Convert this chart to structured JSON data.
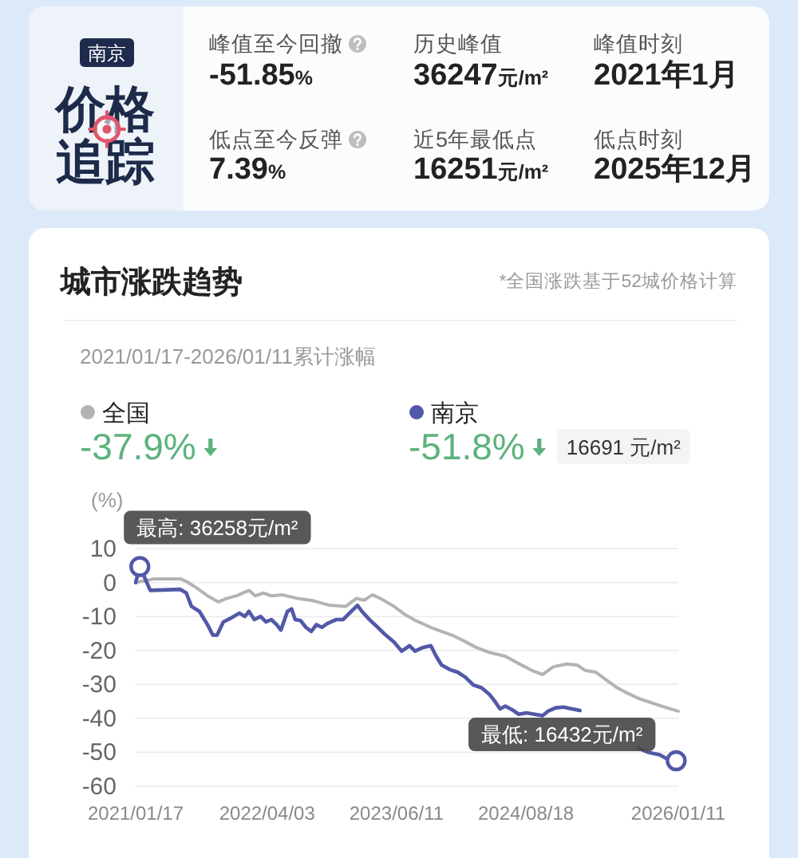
{
  "chart_data": [
    {
      "type": "other",
      "title": "价格追踪",
      "subtitle": "南京",
      "annotations": [
        "峰值至今回撤",
        "-51.85%",
        "历史峰值",
        "36247元/m²",
        "峰值时刻",
        "2021年1月",
        "低点至今反弹",
        "7.39%",
        "近5年最低点",
        "16251元/m²",
        "低点时刻",
        "2025年12月"
      ]
    },
    {
      "type": "line",
      "title": "城市涨跌趋势",
      "subtitle": "2021/01/17-2026/01/11累计涨幅",
      "ylabel": "(%)",
      "legend": "top",
      "grid": "y",
      "line_style": "solid",
      "annotations": [
        "*全国涨跌基于52城价格计算",
        "-37.9%",
        "-51.8%",
        "16691 元/m²",
        {
          "text": "最高: 36258元/m²",
          "x": "2021-01-31",
          "y": 4.7
        },
        {
          "text": "最低: 16432元/m²",
          "x": "2026-01-04",
          "y": -52.5
        }
      ],
      "xlim": [
        "2021-01-17",
        "2026-01-11"
      ],
      "xticks": [
        {
          "value": "2021-01-17",
          "label": "2021/01/17"
        },
        {
          "value": "2022-04-03",
          "label": "2022/04/03"
        },
        {
          "value": "2023-06-11",
          "label": "2023/06/11"
        },
        {
          "value": "2024-08-18",
          "label": "2024/08/18"
        },
        {
          "value": "2026-01-11",
          "label": "2026/01/11"
        }
      ],
      "ylim": [
        -60,
        10
      ],
      "yticks": [
        10,
        0,
        -10,
        -20,
        -30,
        -40,
        -50,
        -60
      ],
      "series": [
        {
          "name": "全国",
          "color": "#b3b3b3",
          "x": [
            "2021-01-17",
            "2021-03-21",
            "2021-06-16",
            "2021-07-06",
            "2021-08-10",
            "2021-09-15",
            "2021-10-21",
            "2021-11-17",
            "2021-12-22",
            "2022-02-01",
            "2022-02-22",
            "2022-03-21",
            "2022-04-17",
            "2022-05-23",
            "2022-07-15",
            "2022-09-07",
            "2022-10-30",
            "2022-12-23",
            "2023-01-27",
            "2023-02-23",
            "2023-03-22",
            "2023-04-18",
            "2023-06-02",
            "2023-07-07",
            "2023-08-12",
            "2023-10-04",
            "2023-11-09",
            "2023-12-14",
            "2024-01-19",
            "2024-03-04",
            "2024-04-18",
            "2024-06-10",
            "2024-08-03",
            "2024-09-07",
            "2024-10-13",
            "2024-11-18",
            "2025-01-01",
            "2025-02-06",
            "2025-03-05",
            "2025-04-09",
            "2025-05-15",
            "2025-06-20",
            "2025-07-25",
            "2025-08-30",
            "2025-10-23",
            "2025-12-15",
            "2026-01-11"
          ],
          "values": [
            0,
            1.1,
            1.1,
            0.3,
            -1.6,
            -3.9,
            -5.7,
            -4.7,
            -3.9,
            -2.3,
            -3.9,
            -3.1,
            -3.9,
            -3.6,
            -4.7,
            -5.4,
            -6.7,
            -7,
            -4.7,
            -5.2,
            -3.6,
            -4.7,
            -7,
            -9.3,
            -11.1,
            -13.2,
            -14.4,
            -15.5,
            -17,
            -19.1,
            -20.6,
            -21.7,
            -24.3,
            -25.9,
            -27.1,
            -24.8,
            -24,
            -24.3,
            -25.9,
            -26.4,
            -28.7,
            -31,
            -32.6,
            -34.1,
            -35.7,
            -37.2,
            -37.9
          ]
        },
        {
          "name": "南京",
          "color": "#5258a8",
          "x": [
            "2021-01-17",
            "2021-01-31",
            "2021-03-07",
            "2021-06-16",
            "2021-07-06",
            "2021-07-23",
            "2021-08-19",
            "2021-09-15",
            "2021-10-03",
            "2021-10-17",
            "2021-11-07",
            "2021-12-04",
            "2021-12-31",
            "2022-01-18",
            "2022-02-01",
            "2022-02-19",
            "2022-03-12",
            "2022-03-30",
            "2022-04-17",
            "2022-05-05",
            "2022-05-19",
            "2022-06-10",
            "2022-06-24",
            "2022-07-06",
            "2022-07-24",
            "2022-08-11",
            "2022-08-29",
            "2022-09-15",
            "2022-10-04",
            "2022-10-21",
            "2022-11-21",
            "2022-12-14",
            "2023-01-01",
            "2023-01-31",
            "2023-02-15",
            "2023-03-13",
            "2023-04-09",
            "2023-05-06",
            "2023-06-02",
            "2023-06-28",
            "2023-07-25",
            "2023-08-12",
            "2023-09-08",
            "2023-10-04",
            "2023-10-22",
            "2023-11-09",
            "2023-12-06",
            "2024-01-02",
            "2024-01-28",
            "2024-02-24",
            "2024-03-22",
            "2024-04-18",
            "2024-05-05",
            "2024-05-23",
            "2024-06-10",
            "2024-07-07",
            "2024-07-25",
            "2024-08-20",
            "2024-09-16",
            "2024-10-13",
            "2024-10-31",
            "2024-11-26",
            "2024-12-23",
            "2025-01-19",
            "2025-02-15",
            "2025-05-15",
            "2025-08-30",
            "2025-10-05",
            "2025-11-09",
            "2025-12-06",
            "2026-01-04",
            "2026-01-11"
          ],
          "values": [
            0,
            4.7,
            -2.3,
            -2,
            -3.1,
            -7,
            -8.5,
            -12.4,
            -15.5,
            -15.5,
            -11.6,
            -10.4,
            -9,
            -10,
            -8.5,
            -10.9,
            -10,
            -11.6,
            -10.9,
            -12.4,
            -14,
            -8.5,
            -7.8,
            -10.9,
            -11.2,
            -13.2,
            -14.4,
            -12.4,
            -13.2,
            -12.1,
            -10.9,
            -10.9,
            -9.3,
            -6.7,
            -8.5,
            -11,
            -13.2,
            -15.5,
            -17.5,
            -20.2,
            -18.6,
            -20.2,
            -19.1,
            -18.6,
            -21.7,
            -24.3,
            -25.6,
            -26.4,
            -27.9,
            -30.2,
            -31,
            -33,
            -34.9,
            -37.2,
            -36.4,
            -37.7,
            -38.8,
            -38.4,
            -38.8,
            -39.2,
            -37.9,
            -36.9,
            -36.7,
            -37.2,
            -37.7,
            null,
            -48.8,
            -50.1,
            -50.7,
            -52,
            -52.5,
            -51.8
          ]
        }
      ]
    }
  ]
}
